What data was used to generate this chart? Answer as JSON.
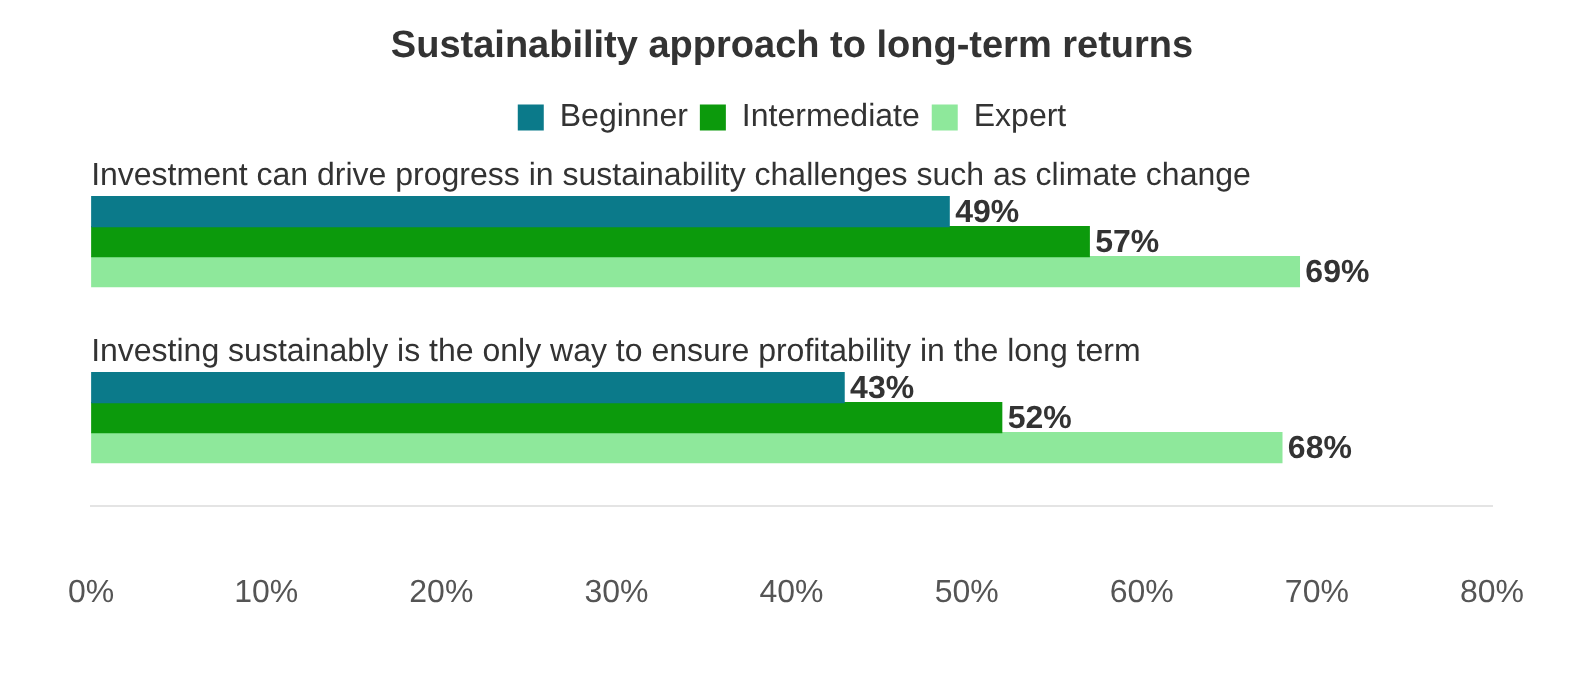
{
  "chart_data": {
    "type": "bar",
    "orientation": "horizontal",
    "title": "Sustainability approach to long-term returns",
    "categories": [
      "Investment can drive progress in sustainability challenges such as climate change",
      "Investing sustainably is the only way to ensure profitability in the long term"
    ],
    "series": [
      {
        "name": "Beginner",
        "color": "#0b7a8a",
        "values": [
          49,
          43
        ],
        "value_labels": [
          "49%",
          "43%"
        ]
      },
      {
        "name": "Intermediate",
        "color": "#0c9a0c",
        "values": [
          57,
          52
        ],
        "value_labels": [
          "57%",
          "52%"
        ]
      },
      {
        "name": "Expert",
        "color": "#8ee89b",
        "values": [
          69,
          68
        ],
        "value_labels": [
          "69%",
          "68%"
        ]
      }
    ],
    "xlim": [
      0,
      80
    ],
    "xticks": [
      {
        "value": 0,
        "label": "0%"
      },
      {
        "value": 10,
        "label": "10%"
      },
      {
        "value": 20,
        "label": "20%"
      },
      {
        "value": 30,
        "label": "30%"
      },
      {
        "value": 40,
        "label": "40%"
      },
      {
        "value": 50,
        "label": "50%"
      },
      {
        "value": 60,
        "label": "60%"
      },
      {
        "value": 70,
        "label": "70%"
      },
      {
        "value": 80,
        "label": "80%"
      }
    ],
    "grid": false,
    "legend": "top"
  }
}
